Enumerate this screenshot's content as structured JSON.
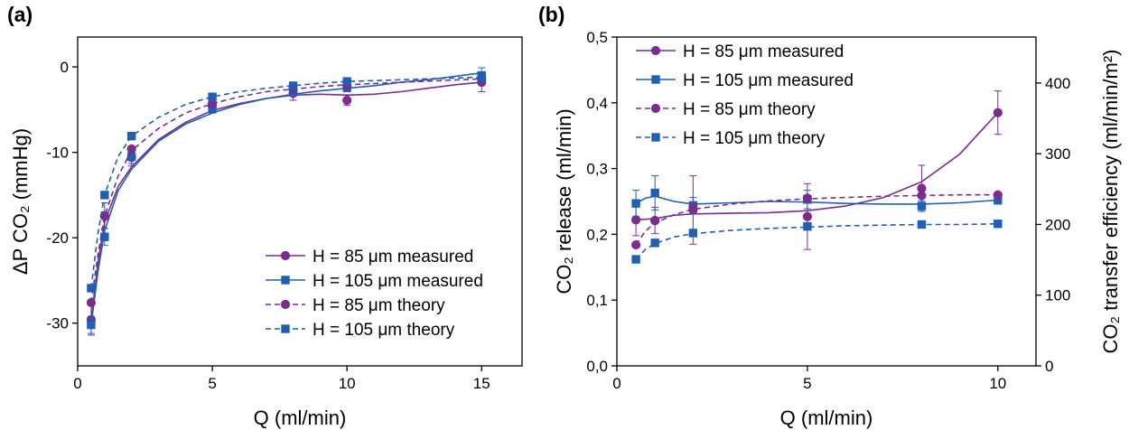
{
  "colors": {
    "purple": "#7b2d8e",
    "blue": "#1f5fb4",
    "axis": "#000000"
  },
  "chart_data": [
    {
      "panel_label": "(a)",
      "type": "line",
      "xlabel": "Q (ml/min)",
      "ylabel": "ΔP CO₂  (mmHg)",
      "xlim": [
        0,
        16.5
      ],
      "ylim": [
        -35,
        3.5
      ],
      "xticks": [
        0,
        5,
        10,
        15
      ],
      "yticks": [
        -30,
        -20,
        -10,
        0
      ],
      "xtick_labels": [
        "0",
        "5",
        "10",
        "15"
      ],
      "ytick_labels": [
        "-30",
        "-20",
        "-10",
        "0"
      ],
      "legend_position": "bottom-right",
      "series": [
        {
          "name": "H = 85 μm measured",
          "color": "purple",
          "marker": "circle",
          "dashed": false,
          "x": [
            0.5,
            1,
            2,
            5,
            8,
            10,
            15
          ],
          "y": [
            -29.6,
            -17.4,
            -10.6,
            -4.6,
            -3.1,
            -3.9,
            -1.8
          ],
          "err": [
            1.8,
            1.5,
            1.0,
            0.6,
            0.8,
            0.6,
            1.1
          ],
          "curve": [
            [
              0.5,
              -29.6
            ],
            [
              0.75,
              -23.0
            ],
            [
              1,
              -18.2
            ],
            [
              1.5,
              -14.0
            ],
            [
              2,
              -11.7
            ],
            [
              3,
              -8.5
            ],
            [
              4,
              -6.5
            ],
            [
              5,
              -5.1
            ],
            [
              6,
              -4.3
            ],
            [
              7,
              -3.7
            ],
            [
              8,
              -3.3
            ],
            [
              9,
              -3.2
            ],
            [
              10,
              -3.3
            ],
            [
              11,
              -3.2
            ],
            [
              12,
              -2.9
            ],
            [
              13,
              -2.5
            ],
            [
              14,
              -2.1
            ],
            [
              15,
              -1.8
            ]
          ]
        },
        {
          "name": "H = 105 μm measured",
          "color": "blue",
          "marker": "square",
          "dashed": false,
          "x": [
            0.5,
            1,
            2,
            5,
            8,
            10,
            15
          ],
          "y": [
            -30.2,
            -19.9,
            -10.5,
            -4.9,
            -2.9,
            -2.4,
            -1.0
          ],
          "err": [
            1.0,
            1.0,
            0.8,
            0.5,
            0.5,
            0.5,
            0.9
          ],
          "curve": [
            [
              0.5,
              -30.2
            ],
            [
              0.75,
              -24.0
            ],
            [
              1,
              -19.2
            ],
            [
              1.5,
              -14.5
            ],
            [
              2,
              -12.0
            ],
            [
              3,
              -8.7
            ],
            [
              4,
              -6.7
            ],
            [
              5,
              -5.4
            ],
            [
              6,
              -4.4
            ],
            [
              7,
              -3.7
            ],
            [
              8,
              -3.2
            ],
            [
              9,
              -2.8
            ],
            [
              10,
              -2.5
            ],
            [
              11,
              -2.2
            ],
            [
              12,
              -1.8
            ],
            [
              13,
              -1.5
            ],
            [
              14,
              -1.1
            ],
            [
              15,
              -0.7
            ]
          ]
        },
        {
          "name": "H = 85 μm theory",
          "color": "purple",
          "marker": "circle",
          "dashed": true,
          "x": [
            0.5,
            1,
            2,
            5,
            8,
            10,
            15
          ],
          "y": [
            -27.6,
            -17.5,
            -9.6,
            -4.3,
            -2.6,
            -2.2,
            -1.4
          ],
          "curve": [
            [
              0.5,
              -27.6
            ],
            [
              0.75,
              -22.0
            ],
            [
              1,
              -17.5
            ],
            [
              1.5,
              -12.8
            ],
            [
              2,
              -9.8
            ],
            [
              3,
              -7.2
            ],
            [
              4,
              -5.4
            ],
            [
              5,
              -4.3
            ],
            [
              6,
              -3.5
            ],
            [
              7,
              -2.9
            ],
            [
              8,
              -2.6
            ],
            [
              9,
              -2.3
            ],
            [
              10,
              -2.1
            ],
            [
              12,
              -1.8
            ],
            [
              15,
              -1.4
            ]
          ]
        },
        {
          "name": "H = 105 μm theory",
          "color": "blue",
          "marker": "square",
          "dashed": true,
          "x": [
            0.5,
            1,
            2,
            5,
            8,
            10,
            15
          ],
          "y": [
            -25.9,
            -15.0,
            -8.1,
            -3.5,
            -2.2,
            -1.7,
            -1.2
          ],
          "curve": [
            [
              0.5,
              -25.9
            ],
            [
              0.75,
              -19.5
            ],
            [
              1,
              -15.0
            ],
            [
              1.5,
              -10.5
            ],
            [
              2,
              -8.1
            ],
            [
              3,
              -5.9
            ],
            [
              4,
              -4.4
            ],
            [
              5,
              -3.5
            ],
            [
              6,
              -2.9
            ],
            [
              7,
              -2.5
            ],
            [
              8,
              -2.2
            ],
            [
              9,
              -1.9
            ],
            [
              10,
              -1.7
            ],
            [
              12,
              -1.5
            ],
            [
              15,
              -1.2
            ]
          ]
        }
      ]
    },
    {
      "panel_label": "(b)",
      "type": "line",
      "xlabel": "Q (ml/min)",
      "ylabel": "CO₂ release (ml/min)",
      "ylabel_right": "CO₂ transfer efficiency (ml/min/m²)",
      "xlim": [
        0,
        11
      ],
      "ylim": [
        0,
        0.5
      ],
      "ylim_right": [
        0,
        465
      ],
      "xticks": [
        0,
        5,
        10
      ],
      "yticks": [
        0,
        0.1,
        0.2,
        0.3,
        0.4,
        0.5
      ],
      "yticks_right": [
        0,
        100,
        200,
        300,
        400
      ],
      "xtick_labels": [
        "0",
        "5",
        "10"
      ],
      "ytick_labels": [
        "0,0",
        "0,1",
        "0,2",
        "0,3",
        "0,4",
        "0,5"
      ],
      "ytick_labels_right": [
        "0",
        "100",
        "200",
        "300",
        "400"
      ],
      "legend_position": "top-left",
      "series": [
        {
          "name": "H = 85 μm measured",
          "color": "purple",
          "marker": "circle",
          "dashed": false,
          "x": [
            0.5,
            1,
            2,
            5,
            8,
            10
          ],
          "y": [
            0.222,
            0.221,
            0.237,
            0.227,
            0.27,
            0.385
          ],
          "err": [
            0.024,
            0.02,
            0.052,
            0.05,
            0.035,
            0.033
          ],
          "curve": [
            [
              0.5,
              0.222
            ],
            [
              1,
              0.224
            ],
            [
              1.5,
              0.229
            ],
            [
              2,
              0.231
            ],
            [
              3,
              0.232
            ],
            [
              4,
              0.233
            ],
            [
              5,
              0.236
            ],
            [
              6,
              0.243
            ],
            [
              7,
              0.256
            ],
            [
              8,
              0.28
            ],
            [
              9,
              0.322
            ],
            [
              10,
              0.385
            ]
          ]
        },
        {
          "name": "H = 105 μm measured",
          "color": "blue",
          "marker": "square",
          "dashed": false,
          "x": [
            0.5,
            1,
            2,
            5,
            8,
            10
          ],
          "y": [
            0.247,
            0.263,
            0.244,
            0.253,
            0.243,
            0.252
          ],
          "err": [
            0.02,
            0.026,
            0.012,
            0.014,
            0.008,
            0.006
          ],
          "curve": [
            [
              0.5,
              0.247
            ],
            [
              0.75,
              0.255
            ],
            [
              1,
              0.258
            ],
            [
              1.5,
              0.25
            ],
            [
              2,
              0.246
            ],
            [
              3,
              0.248
            ],
            [
              4,
              0.25
            ],
            [
              5,
              0.249
            ],
            [
              6,
              0.247
            ],
            [
              7,
              0.246
            ],
            [
              8,
              0.246
            ],
            [
              9,
              0.248
            ],
            [
              10,
              0.252
            ]
          ]
        },
        {
          "name": "H = 85 μm theory",
          "color": "purple",
          "marker": "circle",
          "dashed": true,
          "x": [
            0.5,
            1,
            2,
            5,
            8,
            10
          ],
          "y": [
            0.184,
            0.221,
            0.241,
            0.255,
            0.259,
            0.26
          ],
          "curve": [
            [
              0.5,
              0.184
            ],
            [
              0.75,
              0.205
            ],
            [
              1,
              0.217
            ],
            [
              1.5,
              0.23
            ],
            [
              2,
              0.238
            ],
            [
              3,
              0.246
            ],
            [
              4,
              0.251
            ],
            [
              5,
              0.254
            ],
            [
              6,
              0.256
            ],
            [
              7,
              0.258
            ],
            [
              8,
              0.259
            ],
            [
              9,
              0.26
            ],
            [
              10,
              0.26
            ]
          ]
        },
        {
          "name": "H = 105 μm theory",
          "color": "blue",
          "marker": "square",
          "dashed": true,
          "x": [
            0.5,
            1,
            2,
            5,
            8,
            10
          ],
          "y": [
            0.162,
            0.187,
            0.202,
            0.212,
            0.215,
            0.216
          ],
          "curve": [
            [
              0.5,
              0.162
            ],
            [
              0.75,
              0.177
            ],
            [
              1,
              0.186
            ],
            [
              1.5,
              0.196
            ],
            [
              2,
              0.201
            ],
            [
              3,
              0.206
            ],
            [
              4,
              0.209
            ],
            [
              5,
              0.211
            ],
            [
              6,
              0.213
            ],
            [
              7,
              0.214
            ],
            [
              8,
              0.215
            ],
            [
              9,
              0.215
            ],
            [
              10,
              0.216
            ]
          ]
        }
      ]
    }
  ]
}
